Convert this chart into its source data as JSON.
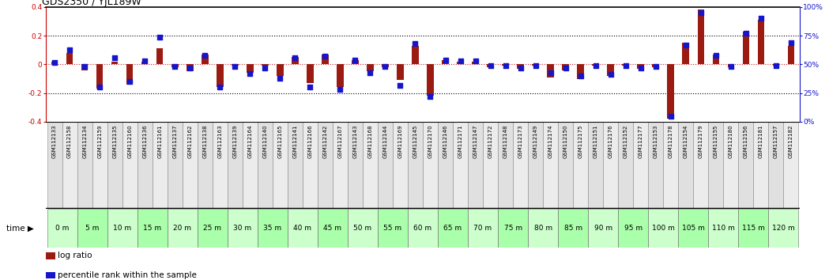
{
  "title": "GDS2350 / YJL189W",
  "gsm_labels": [
    "GSM112133",
    "GSM112158",
    "GSM112134",
    "GSM112159",
    "GSM112135",
    "GSM112160",
    "GSM112136",
    "GSM112161",
    "GSM112137",
    "GSM112162",
    "GSM112138",
    "GSM112163",
    "GSM112139",
    "GSM112164",
    "GSM112140",
    "GSM112165",
    "GSM112141",
    "GSM112166",
    "GSM112142",
    "GSM112167",
    "GSM112143",
    "GSM112168",
    "GSM112144",
    "GSM112169",
    "GSM112145",
    "GSM112170",
    "GSM112146",
    "GSM112171",
    "GSM112147",
    "GSM112172",
    "GSM112148",
    "GSM112173",
    "GSM112149",
    "GSM112174",
    "GSM112150",
    "GSM112175",
    "GSM112151",
    "GSM112176",
    "GSM112152",
    "GSM112177",
    "GSM112153",
    "GSM112178",
    "GSM112154",
    "GSM112179",
    "GSM112155",
    "GSM112180",
    "GSM112156",
    "GSM112181",
    "GSM112157",
    "GSM112182"
  ],
  "time_labels": [
    "0 m",
    "5 m",
    "10 m",
    "15 m",
    "20 m",
    "25 m",
    "30 m",
    "35 m",
    "40 m",
    "45 m",
    "50 m",
    "55 m",
    "60 m",
    "65 m",
    "70 m",
    "75 m",
    "80 m",
    "85 m",
    "90 m",
    "95 m",
    "100 m",
    "105 m",
    "110 m",
    "115 m",
    "120 m"
  ],
  "log_ratio": [
    0.02,
    0.08,
    -0.04,
    -0.17,
    0.02,
    -0.14,
    0.02,
    0.11,
    -0.02,
    -0.05,
    0.07,
    -0.16,
    -0.01,
    -0.06,
    -0.01,
    -0.08,
    0.05,
    -0.13,
    0.07,
    -0.16,
    0.03,
    -0.05,
    -0.02,
    -0.11,
    0.13,
    -0.22,
    0.03,
    0.02,
    0.02,
    -0.02,
    -0.01,
    -0.03,
    -0.01,
    -0.09,
    -0.04,
    -0.1,
    -0.01,
    -0.08,
    -0.01,
    -0.03,
    -0.02,
    -0.38,
    0.15,
    0.38,
    0.07,
    -0.02,
    0.23,
    0.31,
    -0.01,
    0.13
  ],
  "percentile_rank": [
    52,
    63,
    48,
    30,
    56,
    35,
    53,
    74,
    48,
    47,
    58,
    30,
    48,
    42,
    47,
    38,
    56,
    30,
    57,
    28,
    54,
    43,
    48,
    32,
    68,
    22,
    54,
    53,
    53,
    49,
    49,
    47,
    49,
    43,
    47,
    40,
    49,
    41,
    49,
    47,
    48,
    5,
    67,
    95,
    58,
    48,
    77,
    90,
    49,
    69
  ],
  "bar_color": "#9B1A11",
  "dot_color": "#1515CC",
  "ylim_left": [
    -0.4,
    0.4
  ],
  "ylim_right": [
    0,
    100
  ],
  "title_fontsize": 9,
  "tick_fontsize": 6.5,
  "gsm_fontsize": 5.0,
  "time_fontsize": 6.5,
  "zero_line_color": "#CC2222",
  "dot_line_color_75": 0.2,
  "dot_line_color_25": -0.2,
  "time_colors": [
    "#CCFFCC",
    "#AAFFAA"
  ],
  "gsm_bg_even": "#E0E0E0",
  "gsm_bg_odd": "#ECECEC",
  "gsm_border": "#888888",
  "black_sep": "#111111"
}
